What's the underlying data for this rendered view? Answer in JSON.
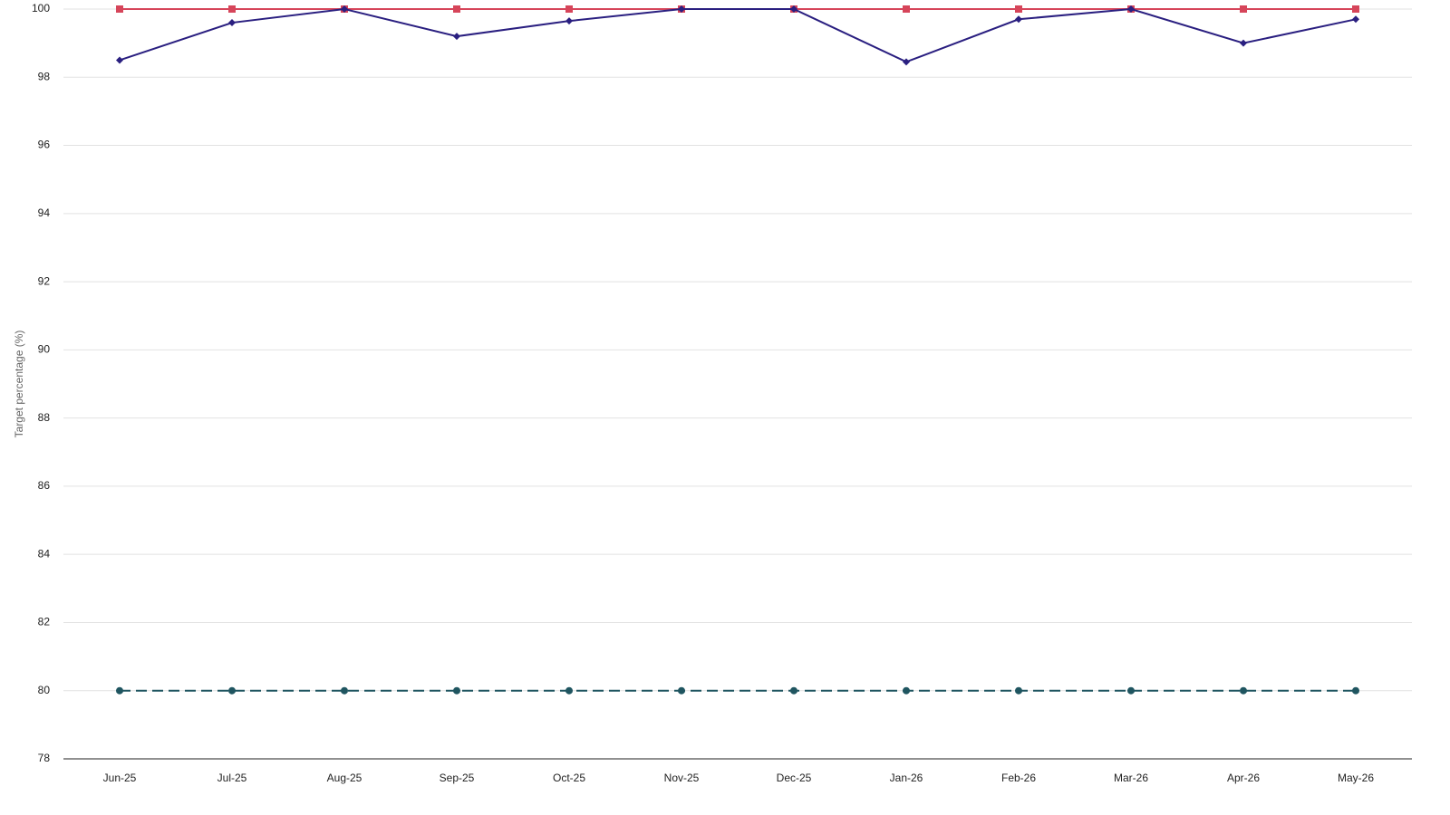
{
  "chart_data": {
    "type": "line",
    "y_label": "Target percentage (%)",
    "categories": [
      "Jun-25",
      "Jul-25",
      "Aug-25",
      "Sep-25",
      "Oct-25",
      "Nov-25",
      "Dec-25",
      "Jan-26",
      "Feb-26",
      "Mar-26",
      "Apr-26",
      "May-26"
    ],
    "series": [
      {
        "color": "#d6455a",
        "marker": "square",
        "dash": false,
        "values": [
          100,
          100,
          100,
          100,
          100,
          100,
          100,
          100,
          100,
          100,
          100,
          100
        ]
      },
      {
        "color": "#2a1f80",
        "marker": "diamond",
        "dash": false,
        "values": [
          98.5,
          99.6,
          100,
          99.2,
          99.65,
          100,
          100,
          98.45,
          99.7,
          100,
          99.0,
          99.7
        ]
      },
      {
        "color": "#1f5560",
        "marker": "circle",
        "dash": true,
        "values": [
          80,
          80,
          80,
          80,
          80,
          80,
          80,
          80,
          80,
          80,
          80,
          80
        ]
      }
    ],
    "ylim": [
      78,
      100
    ],
    "yticks": [
      78,
      80,
      82,
      84,
      86,
      88,
      90,
      92,
      94,
      96,
      98,
      100
    ],
    "grid": true
  }
}
